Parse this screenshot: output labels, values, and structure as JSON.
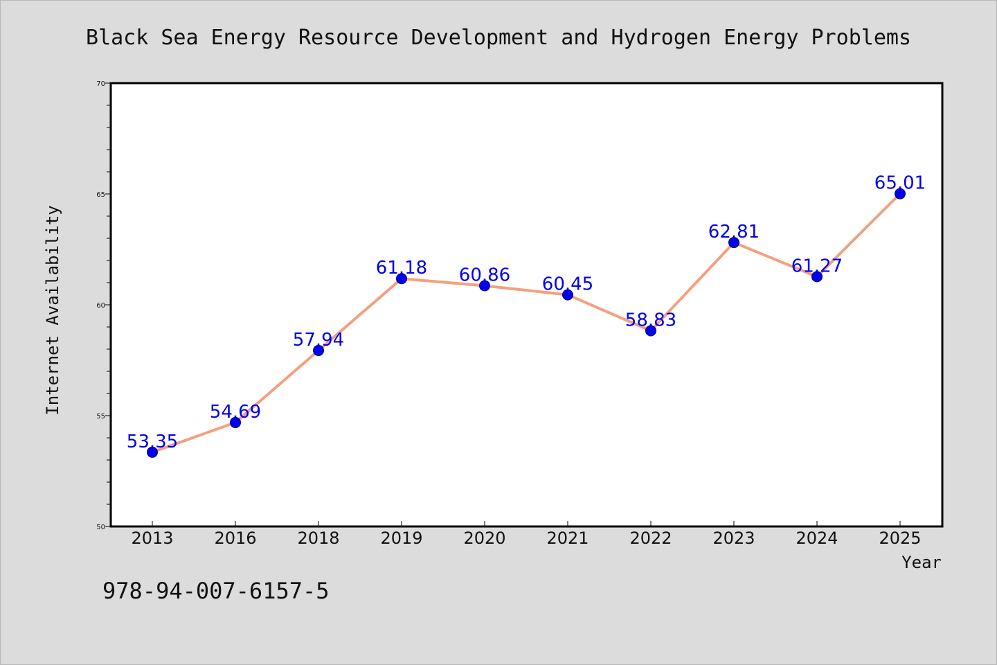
{
  "chart_data": {
    "type": "line",
    "title": "Black Sea Energy Resource Development and Hydrogen Energy Problems",
    "xlabel": "Year",
    "ylabel": "Internet Availability",
    "categories": [
      "2013",
      "2016",
      "2018",
      "2019",
      "2020",
      "2021",
      "2022",
      "2023",
      "2024",
      "2025"
    ],
    "series": [
      {
        "values": [
          53.35,
          54.69,
          57.94,
          61.18,
          60.86,
          60.45,
          58.83,
          62.81,
          61.27,
          65.01
        ],
        "data_labels": [
          "53.35",
          "54.69",
          "57.94",
          "61.18",
          "60.86",
          "60.45",
          "58.83",
          "62.81",
          "61.27",
          "65.01"
        ],
        "line_color": "#f4a07e",
        "marker_color": "#0000ee",
        "label_color": "#0000ee"
      }
    ],
    "ylim": [
      50,
      70
    ],
    "yticks": [
      "50",
      "55",
      "60",
      "65",
      "70"
    ],
    "grid": false,
    "legend": "none"
  },
  "footer": {
    "isbn": "978-94-007-6157-5"
  }
}
